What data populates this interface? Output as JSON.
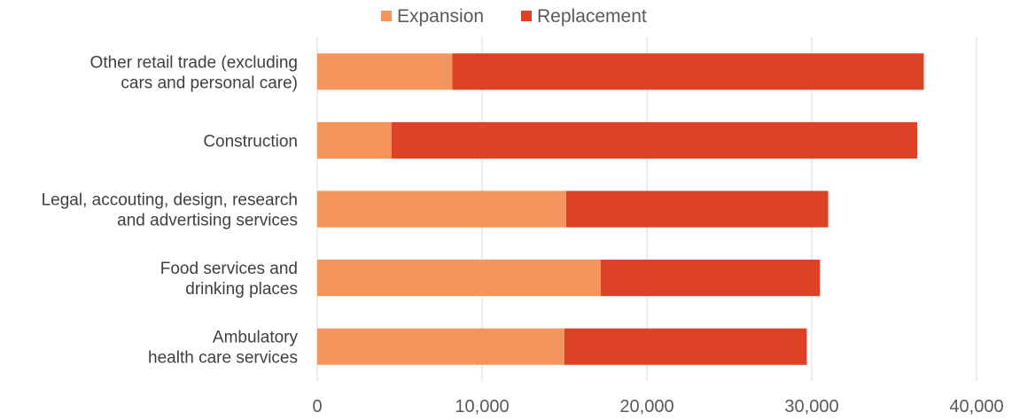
{
  "chart_data": {
    "type": "bar",
    "orientation": "horizontal",
    "stacked": true,
    "categories": [
      [
        "Other retail trade (excluding",
        "cars and personal care)"
      ],
      [
        "Construction"
      ],
      [
        "Legal, accouting, design, research",
        "and advertising services"
      ],
      [
        "Food services and",
        "drinking places"
      ],
      [
        "Ambulatory",
        "health care services"
      ]
    ],
    "series": [
      {
        "name": "Expansion",
        "color": "#F4955E",
        "values": [
          8200,
          4500,
          15100,
          17200,
          15000
        ]
      },
      {
        "name": "Replacement",
        "color": "#DE4226",
        "values": [
          28600,
          31900,
          15900,
          13300,
          14700
        ]
      }
    ],
    "xlim": [
      0,
      40000
    ],
    "xticks": [
      0,
      10000,
      20000,
      30000,
      40000
    ],
    "xtick_labels": [
      "0",
      "10,000",
      "20,000",
      "30,000",
      "40,000"
    ],
    "grid": true,
    "legend_position": "top-center",
    "title": "",
    "xlabel": "",
    "ylabel": ""
  }
}
